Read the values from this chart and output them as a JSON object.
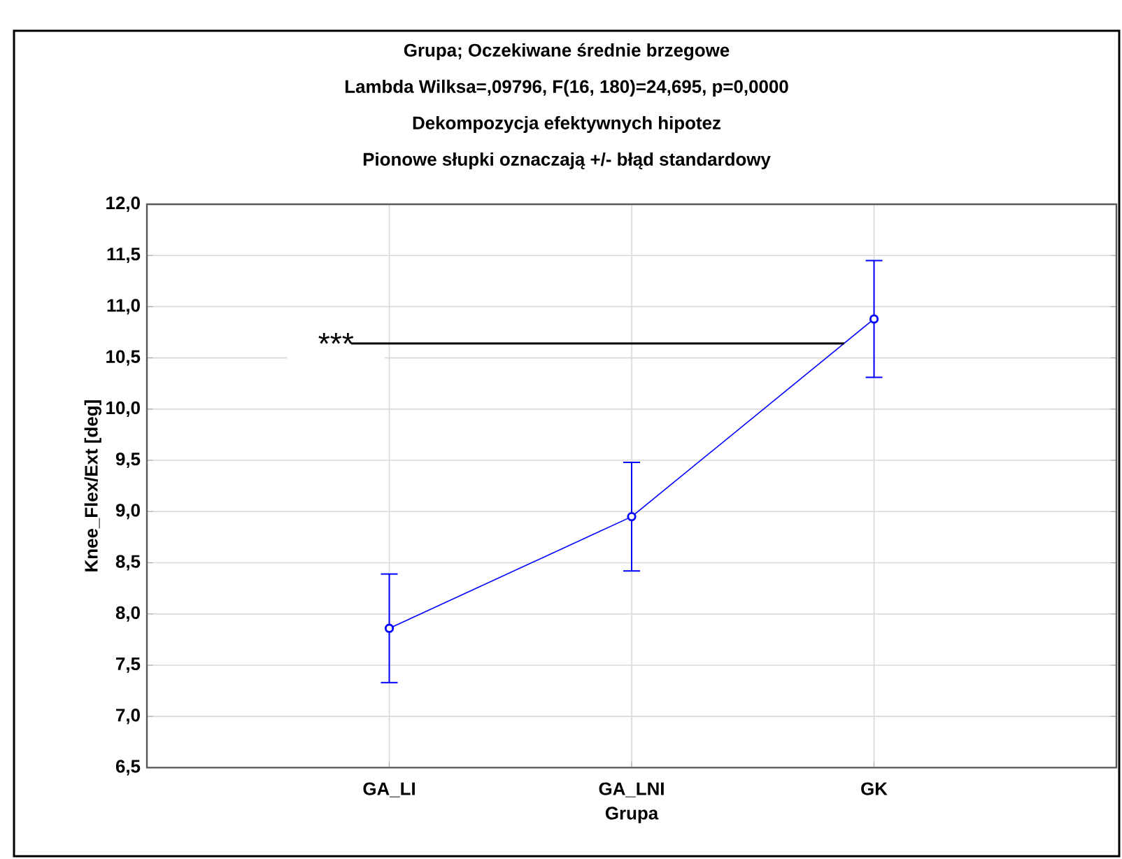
{
  "chart_data": {
    "type": "line",
    "title": "Grupa; Oczekiwane średnie brzegowe",
    "subtitle": "Lambda Wilksa=,09796, F(16, 180)=24,695, p=0,0000",
    "annotations": [
      "Dekompozycja efektywnych hipotez",
      "Pionowe słupki oznaczają +/- błąd standardowy"
    ],
    "ref_lines": [
      {
        "axis": "y",
        "value": 10.64,
        "label": "***",
        "color": "#000000"
      }
    ],
    "xlabel": "Grupa",
    "ylabel": "Knee_Flex/Ext [deg]",
    "categories": [
      "GA_LI",
      "GA_LNI",
      "GK"
    ],
    "series": [
      {
        "color": "#0000ff",
        "values": [
          7.86,
          8.95,
          10.88
        ],
        "errors": [
          0.53,
          0.53,
          0.57
        ]
      }
    ],
    "marker": "circle",
    "grid": true,
    "ylim": [
      6.5,
      12.0
    ],
    "yticks": [
      {
        "value": 6.5,
        "label": "6,5"
      },
      {
        "value": 7.0,
        "label": "7,0"
      },
      {
        "value": 7.5,
        "label": "7,5"
      },
      {
        "value": 8.0,
        "label": "8,0"
      },
      {
        "value": 8.5,
        "label": "8,5"
      },
      {
        "value": 9.0,
        "label": "9,0"
      },
      {
        "value": 9.5,
        "label": "9,5"
      },
      {
        "value": 10.0,
        "label": "10,0"
      },
      {
        "value": 10.5,
        "label": "10,5"
      },
      {
        "value": 11.0,
        "label": "11,0"
      },
      {
        "value": 11.5,
        "label": "11,5"
      },
      {
        "value": 12.0,
        "label": "12,0"
      }
    ]
  }
}
